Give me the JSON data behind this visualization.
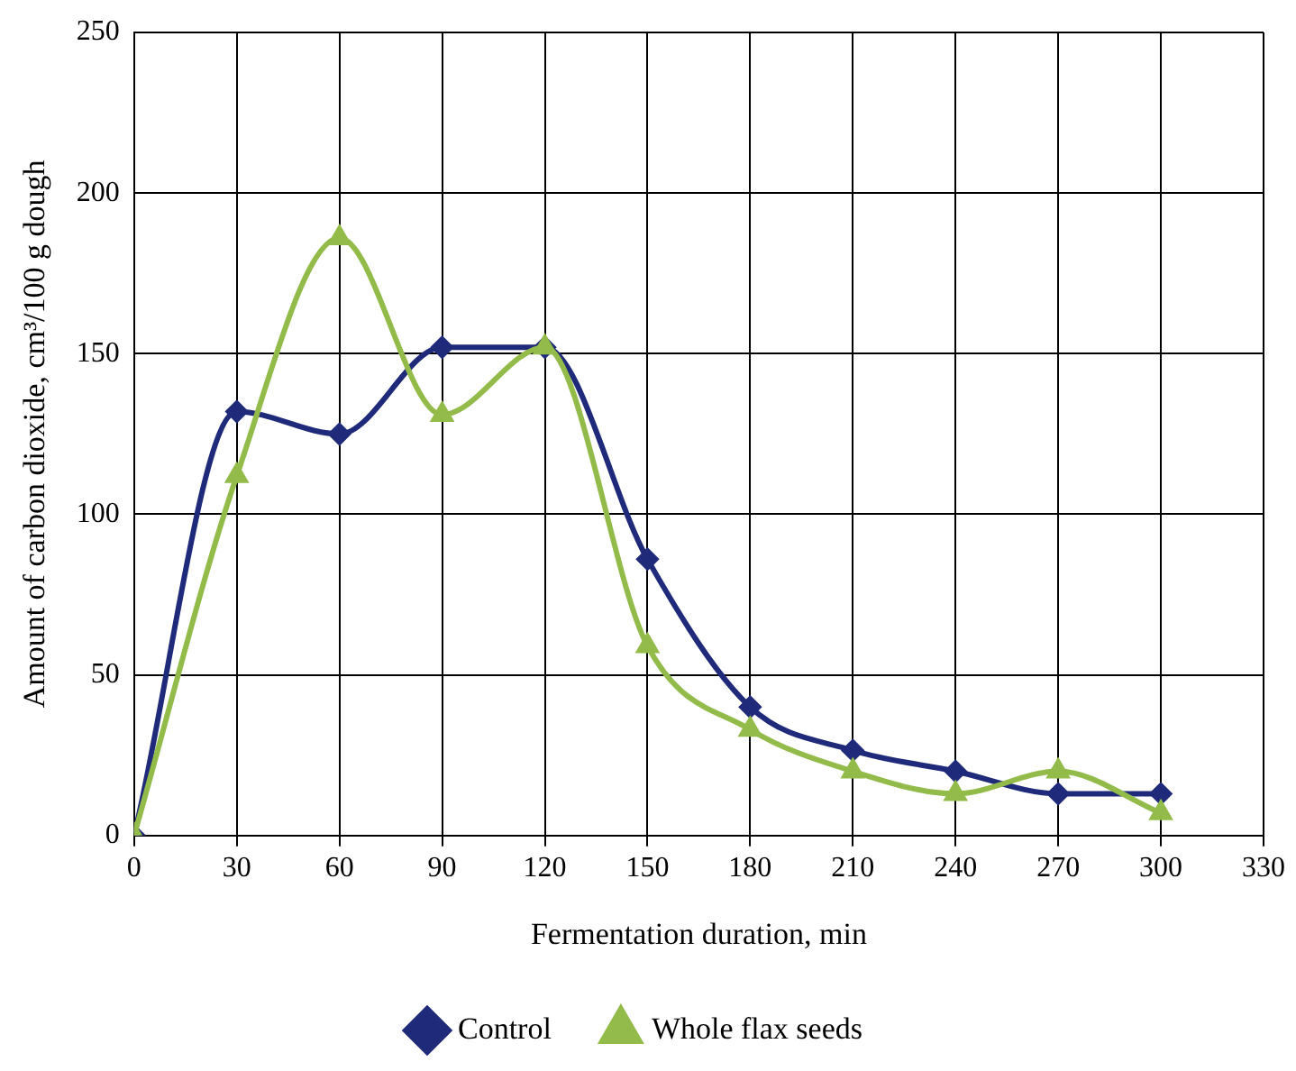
{
  "chart_data": {
    "type": "line",
    "xlabel": "Fermentation duration, min",
    "ylabel": "Amount of carbon dioxide, cm³/100 g dough",
    "x": [
      0,
      30,
      60,
      90,
      120,
      150,
      180,
      210,
      240,
      270,
      300
    ],
    "series": [
      {
        "name": "Control",
        "color": "#1f2a7a",
        "marker": "diamond",
        "values": [
          0,
          132,
          125,
          152,
          152,
          86,
          40,
          26.5,
          20,
          13,
          13
        ]
      },
      {
        "name": "Whole flax seeds",
        "color": "#92bb4a",
        "marker": "triangle",
        "values": [
          0,
          112,
          186,
          131,
          152,
          59,
          33,
          20,
          13,
          20,
          7
        ]
      }
    ],
    "xlim": [
      0,
      330
    ],
    "xticks": [
      0,
      30,
      60,
      90,
      120,
      150,
      180,
      210,
      240,
      270,
      300,
      330
    ],
    "ylim": [
      0,
      250
    ],
    "yticks": [
      0,
      50,
      100,
      150,
      200,
      250
    ],
    "grid": true,
    "legend": "bottom",
    "line_style": "solid"
  }
}
